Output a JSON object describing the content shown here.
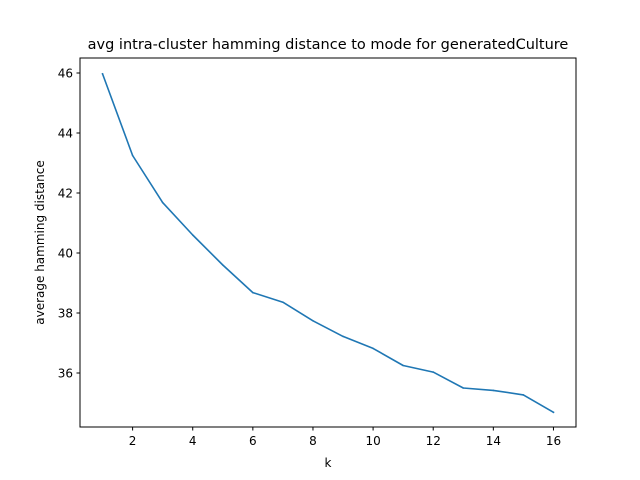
{
  "chart_data": {
    "type": "line",
    "title": "avg intra-cluster hamming distance to mode for generatedCulture",
    "xlabel": "k",
    "ylabel": "average hamming distance",
    "xlim": [
      0.25,
      16.75
    ],
    "ylim": [
      34.2,
      46.5
    ],
    "x_ticks": [
      2,
      4,
      6,
      8,
      10,
      12,
      14,
      16
    ],
    "y_ticks": [
      36,
      38,
      40,
      42,
      44,
      46
    ],
    "grid": false,
    "legend": "none",
    "series": [
      {
        "color": "#1f77b4",
        "x": [
          1,
          2,
          3,
          4,
          5,
          6,
          7,
          8,
          9,
          10,
          11,
          12,
          13,
          14,
          15,
          16
        ],
        "y": [
          45.97,
          43.25,
          41.68,
          40.6,
          39.6,
          38.68,
          38.36,
          37.74,
          37.22,
          36.82,
          36.25,
          36.03,
          35.5,
          35.42,
          35.27,
          34.69
        ]
      }
    ]
  }
}
